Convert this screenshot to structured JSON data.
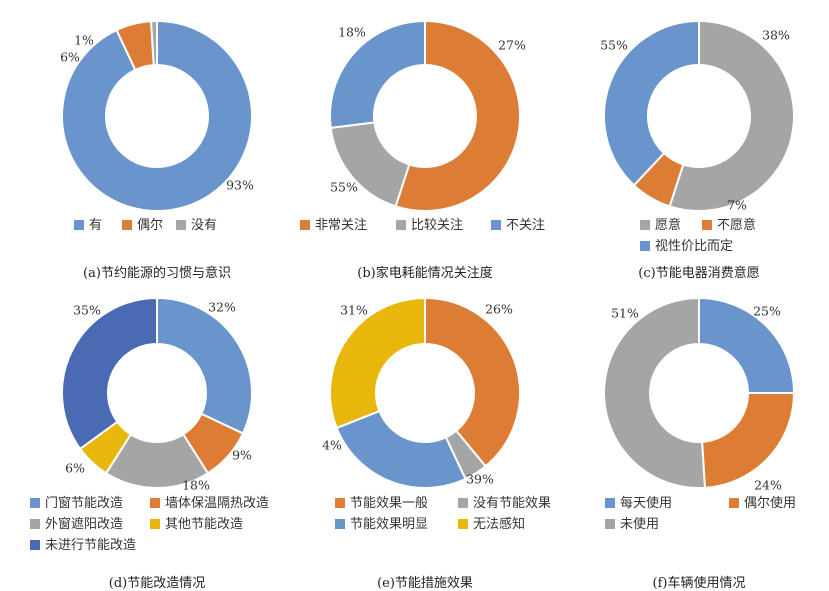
{
  "chart_data": [
    {
      "type": "pie",
      "title": "(a)节约能源的习惯与意识",
      "categories": [
        "有",
        "偶尔",
        "没有"
      ],
      "values": [
        93,
        6,
        1
      ],
      "labels": [
        "93%",
        "6%",
        "1%"
      ],
      "colors": [
        "#6a95cc",
        "#dd7c35",
        "#a5a5a5"
      ],
      "legend_order": [
        0,
        1,
        2
      ]
    },
    {
      "type": "pie",
      "title": "(b)家电耗能情况关注度",
      "categories": [
        "非常关注",
        "比较关注",
        "不关注"
      ],
      "values": [
        55,
        18,
        27
      ],
      "labels": [
        "55%",
        "18%",
        "27%"
      ],
      "colors": [
        "#dd7c35",
        "#a5a5a5",
        "#6a95cc"
      ],
      "legend_order": [
        0,
        1,
        2
      ]
    },
    {
      "type": "pie",
      "title": "(c)节能电器消费意愿",
      "categories": [
        "愿意",
        "不愿意",
        "视性价比而定"
      ],
      "values": [
        55,
        7,
        38
      ],
      "labels": [
        "55%",
        "7%",
        "38%"
      ],
      "colors": [
        "#a5a5a5",
        "#dd7c35",
        "#6a95cc"
      ],
      "legend_order": [
        0,
        1,
        2
      ]
    },
    {
      "type": "pie",
      "title": "(d)节能改造情况",
      "categories": [
        "门窗节能改造",
        "墙体保温隔热改造",
        "外窗遮阳改造",
        "其他节能改造",
        "未进行节能改造"
      ],
      "values": [
        32,
        9,
        18,
        6,
        35
      ],
      "labels": [
        "32%",
        "9%",
        "18%",
        "6%",
        "35%"
      ],
      "colors": [
        "#6a95cc",
        "#dd7c35",
        "#a5a5a5",
        "#e8b70c",
        "#4a6bb4"
      ],
      "legend_order": [
        0,
        1,
        2,
        3,
        4
      ]
    },
    {
      "type": "pie",
      "title": "(e)节能措施效果",
      "categories": [
        "节能效果一般",
        "没有节能效果",
        "节能效果明显",
        "无法感知"
      ],
      "values": [
        39,
        4,
        26,
        31
      ],
      "labels": [
        "39%",
        "4%",
        "26%",
        "31%"
      ],
      "colors": [
        "#dd7c35",
        "#a5a5a5",
        "#6a95cc",
        "#e8b70c"
      ],
      "legend_order": [
        0,
        1,
        2,
        3
      ]
    },
    {
      "type": "pie",
      "title": "(f)车辆使用情况",
      "categories": [
        "每天使用",
        "偶尔使用",
        "未使用"
      ],
      "values": [
        25,
        24,
        51
      ],
      "labels": [
        "25%",
        "24%",
        "51%"
      ],
      "colors": [
        "#6a95cc",
        "#dd7c35",
        "#a5a5a5"
      ],
      "legend_order": [
        0,
        1,
        2
      ]
    }
  ]
}
